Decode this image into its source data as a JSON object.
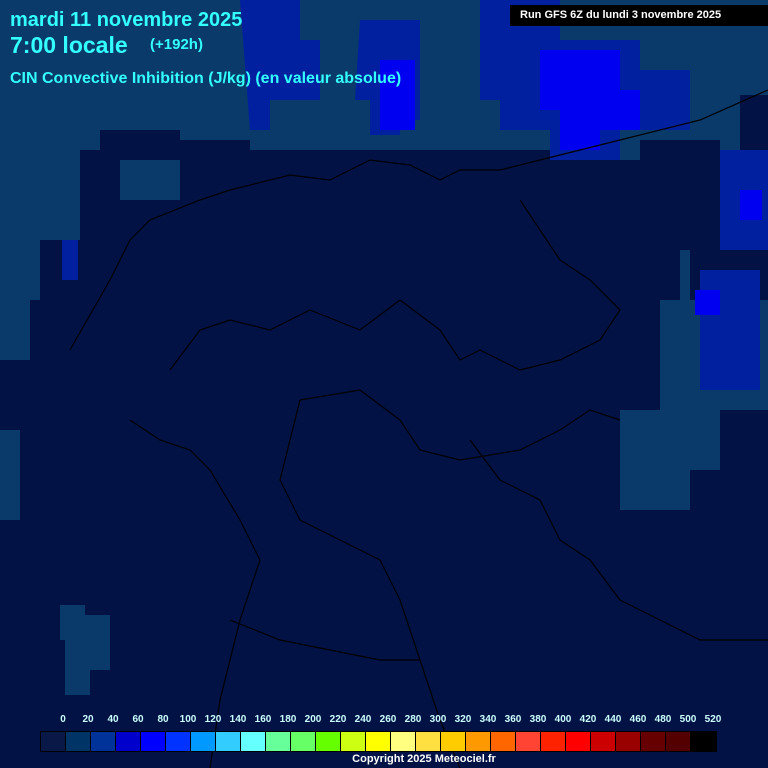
{
  "header": {
    "date": "mardi 11 novembre 2025",
    "time": "7:00 locale",
    "lead": "(+192h)",
    "parameter": "CIN Convective Inhibition (J/kg) (en valeur absolue)",
    "run": "Run GFS 6Z du lundi 3 novembre 2025"
  },
  "legend": {
    "labels": [
      "0",
      "20",
      "40",
      "60",
      "80",
      "100",
      "120",
      "140",
      "160",
      "180",
      "200",
      "220",
      "240",
      "260",
      "280",
      "300",
      "320",
      "340",
      "360",
      "380",
      "400",
      "420",
      "440",
      "460",
      "480",
      "500",
      "520"
    ],
    "colors": [
      "#0a1848",
      "#003366",
      "#003399",
      "#0000cc",
      "#0000ff",
      "#0033ff",
      "#0099ff",
      "#33ccff",
      "#66ffff",
      "#66ff99",
      "#66ff66",
      "#66ff00",
      "#ccff11",
      "#ffff00",
      "#ffff80",
      "#ffe040",
      "#ffcc00",
      "#ff9900",
      "#ff6600",
      "#ff4433",
      "#ff2200",
      "#ff0000",
      "#cc0000",
      "#990000",
      "#660000",
      "#550000",
      "#000000"
    ]
  },
  "footer": {
    "copyright": "Copyright 2025 Meteociel.fr"
  }
}
